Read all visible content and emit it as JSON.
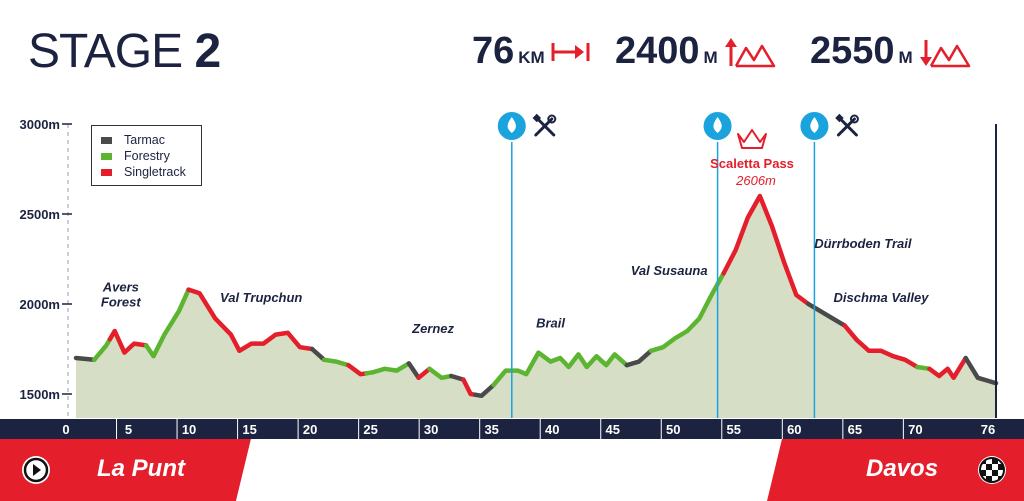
{
  "header": {
    "title_word": "STAGE",
    "title_number": "2",
    "distance": {
      "value": "76",
      "unit": "KM",
      "icon": "distance-arrow-icon"
    },
    "ascent": {
      "value": "2400",
      "unit": "M",
      "icon": "ascent-mountain-icon"
    },
    "descent": {
      "value": "2550",
      "unit": "M",
      "icon": "descent-mountain-icon"
    }
  },
  "legend": [
    {
      "label": "Tarmac",
      "color": "#4a4a4a"
    },
    {
      "label": "Forestry",
      "color": "#5cb531"
    },
    {
      "label": "Singletrack",
      "color": "#e41e2b"
    }
  ],
  "footer": {
    "start": "La Punt",
    "finish": "Davos",
    "start_icon": "play-icon",
    "finish_icon": "checkered-flag-icon"
  },
  "colors": {
    "navy": "#1c2340",
    "red": "#e41e2b",
    "green": "#5cb531",
    "grey": "#4a4a4a",
    "fill": "#d6dfc6",
    "water": "#1aa3dd"
  },
  "chart_data": {
    "type": "area",
    "xlabel": "",
    "ylabel": "",
    "xlim": [
      0,
      76
    ],
    "ylim": [
      1500,
      3000
    ],
    "x_ticks": [
      0,
      5,
      10,
      15,
      20,
      25,
      30,
      35,
      40,
      45,
      50,
      55,
      60,
      65,
      70,
      76
    ],
    "y_ticks": [
      {
        "value": 1500,
        "label": "1500m"
      },
      {
        "value": 2000,
        "label": "2000m"
      },
      {
        "value": 2500,
        "label": "2500m"
      },
      {
        "value": 3000,
        "label": "3000m"
      }
    ],
    "grid": false,
    "legend_position": "top-left",
    "series": [
      {
        "x": 0,
        "y": 1700
      },
      {
        "x": 1.5,
        "y": 1690
      },
      {
        "x": 2.5,
        "y": 1770
      },
      {
        "x": 3.2,
        "y": 1850
      },
      {
        "x": 4,
        "y": 1730
      },
      {
        "x": 4.8,
        "y": 1780
      },
      {
        "x": 5.8,
        "y": 1770
      },
      {
        "x": 6.4,
        "y": 1710
      },
      {
        "x": 7.3,
        "y": 1830
      },
      {
        "x": 8.5,
        "y": 1960
      },
      {
        "x": 9.3,
        "y": 2080
      },
      {
        "x": 10.2,
        "y": 2060
      },
      {
        "x": 11.5,
        "y": 1920
      },
      {
        "x": 12.8,
        "y": 1830
      },
      {
        "x": 13.5,
        "y": 1740
      },
      {
        "x": 14.5,
        "y": 1780
      },
      {
        "x": 15.5,
        "y": 1780
      },
      {
        "x": 16.5,
        "y": 1830
      },
      {
        "x": 17.5,
        "y": 1840
      },
      {
        "x": 18.5,
        "y": 1760
      },
      {
        "x": 19.5,
        "y": 1750
      },
      {
        "x": 20.5,
        "y": 1690
      },
      {
        "x": 21.5,
        "y": 1680
      },
      {
        "x": 22.5,
        "y": 1660
      },
      {
        "x": 23.5,
        "y": 1610
      },
      {
        "x": 24.5,
        "y": 1620
      },
      {
        "x": 25.5,
        "y": 1640
      },
      {
        "x": 26.5,
        "y": 1630
      },
      {
        "x": 27.5,
        "y": 1670
      },
      {
        "x": 28.3,
        "y": 1590
      },
      {
        "x": 29.2,
        "y": 1640
      },
      {
        "x": 30.2,
        "y": 1590
      },
      {
        "x": 31,
        "y": 1600
      },
      {
        "x": 32,
        "y": 1580
      },
      {
        "x": 32.6,
        "y": 1500
      },
      {
        "x": 33.5,
        "y": 1490
      },
      {
        "x": 34.5,
        "y": 1550
      },
      {
        "x": 35.5,
        "y": 1630
      },
      {
        "x": 36.5,
        "y": 1630
      },
      {
        "x": 37.2,
        "y": 1610
      },
      {
        "x": 38.2,
        "y": 1730
      },
      {
        "x": 39.2,
        "y": 1680
      },
      {
        "x": 40,
        "y": 1700
      },
      {
        "x": 40.7,
        "y": 1650
      },
      {
        "x": 41.5,
        "y": 1720
      },
      {
        "x": 42.2,
        "y": 1650
      },
      {
        "x": 43,
        "y": 1710
      },
      {
        "x": 43.8,
        "y": 1660
      },
      {
        "x": 44.5,
        "y": 1720
      },
      {
        "x": 45.5,
        "y": 1660
      },
      {
        "x": 46.5,
        "y": 1680
      },
      {
        "x": 47.5,
        "y": 1740
      },
      {
        "x": 48.5,
        "y": 1760
      },
      {
        "x": 49.5,
        "y": 1810
      },
      {
        "x": 50.5,
        "y": 1850
      },
      {
        "x": 51.5,
        "y": 1920
      },
      {
        "x": 52.5,
        "y": 2050
      },
      {
        "x": 53.5,
        "y": 2170
      },
      {
        "x": 54.5,
        "y": 2300
      },
      {
        "x": 55.5,
        "y": 2480
      },
      {
        "x": 56.5,
        "y": 2600
      },
      {
        "x": 57.5,
        "y": 2430
      },
      {
        "x": 58.5,
        "y": 2230
      },
      {
        "x": 59.5,
        "y": 2050
      },
      {
        "x": 60.5,
        "y": 2000
      },
      {
        "x": 61.5,
        "y": 1960
      },
      {
        "x": 62.5,
        "y": 1920
      },
      {
        "x": 63.5,
        "y": 1880
      },
      {
        "x": 64.5,
        "y": 1800
      },
      {
        "x": 65.5,
        "y": 1740
      },
      {
        "x": 66.5,
        "y": 1740
      },
      {
        "x": 67.5,
        "y": 1710
      },
      {
        "x": 68.5,
        "y": 1690
      },
      {
        "x": 69.5,
        "y": 1650
      },
      {
        "x": 70.5,
        "y": 1640
      },
      {
        "x": 71.3,
        "y": 1600
      },
      {
        "x": 72,
        "y": 1640
      },
      {
        "x": 72.5,
        "y": 1590
      },
      {
        "x": 73.5,
        "y": 1700
      },
      {
        "x": 74.5,
        "y": 1590
      },
      {
        "x": 75.5,
        "y": 1570
      },
      {
        "x": 76,
        "y": 1560
      }
    ],
    "segments": [
      {
        "from": 0,
        "to": 1.5,
        "surface": "Tarmac"
      },
      {
        "from": 1.5,
        "to": 2.8,
        "surface": "Forestry"
      },
      {
        "from": 2.8,
        "to": 5.8,
        "surface": "Singletrack"
      },
      {
        "from": 5.8,
        "to": 9.3,
        "surface": "Forestry"
      },
      {
        "from": 9.3,
        "to": 19.5,
        "surface": "Singletrack"
      },
      {
        "from": 19.5,
        "to": 20.5,
        "surface": "Tarmac"
      },
      {
        "from": 20.5,
        "to": 22.5,
        "surface": "Forestry"
      },
      {
        "from": 22.5,
        "to": 24,
        "surface": "Singletrack"
      },
      {
        "from": 24,
        "to": 27.5,
        "surface": "Forestry"
      },
      {
        "from": 27.5,
        "to": 28.3,
        "surface": "Tarmac"
      },
      {
        "from": 28.3,
        "to": 29.2,
        "surface": "Singletrack"
      },
      {
        "from": 29.2,
        "to": 31,
        "surface": "Forestry"
      },
      {
        "from": 31,
        "to": 32,
        "surface": "Tarmac"
      },
      {
        "from": 32,
        "to": 33,
        "surface": "Singletrack"
      },
      {
        "from": 33,
        "to": 34.5,
        "surface": "Tarmac"
      },
      {
        "from": 34.5,
        "to": 45.5,
        "surface": "Forestry"
      },
      {
        "from": 45.5,
        "to": 47.5,
        "surface": "Tarmac"
      },
      {
        "from": 47.5,
        "to": 53.5,
        "surface": "Forestry"
      },
      {
        "from": 53.5,
        "to": 60.5,
        "surface": "Singletrack"
      },
      {
        "from": 60.5,
        "to": 63.5,
        "surface": "Tarmac"
      },
      {
        "from": 63.5,
        "to": 69.5,
        "surface": "Singletrack"
      },
      {
        "from": 69.5,
        "to": 70.5,
        "surface": "Forestry"
      },
      {
        "from": 70.5,
        "to": 73.5,
        "surface": "Singletrack"
      },
      {
        "from": 73.5,
        "to": 76,
        "surface": "Tarmac"
      }
    ],
    "annotations": [
      {
        "x": 3.7,
        "y": 2070,
        "text": "Avers"
      },
      {
        "x": 3.7,
        "y": 1985,
        "text": "Forest"
      },
      {
        "x": 15.3,
        "y": 2010,
        "text": "Val Trupchun"
      },
      {
        "x": 29.5,
        "y": 1840,
        "text": "Zernez"
      },
      {
        "x": 39.2,
        "y": 1870,
        "text": "Brail"
      },
      {
        "x": 49,
        "y": 2160,
        "text": "Val Susauna"
      },
      {
        "x": 65,
        "y": 2310,
        "text": "Dürrboden Trail"
      },
      {
        "x": 66.5,
        "y": 2010,
        "text": "Dischma Valley"
      }
    ],
    "summit": {
      "x": 56.5,
      "label": "Scaletta Pass",
      "elevation_label": "2606m"
    },
    "markers": [
      {
        "x": 36,
        "icons": [
          "water-drop-icon",
          "tools-icon"
        ]
      },
      {
        "x": 53,
        "icons": [
          "water-drop-icon"
        ]
      },
      {
        "x": 61,
        "icons": [
          "water-drop-icon",
          "tools-icon"
        ]
      }
    ]
  }
}
